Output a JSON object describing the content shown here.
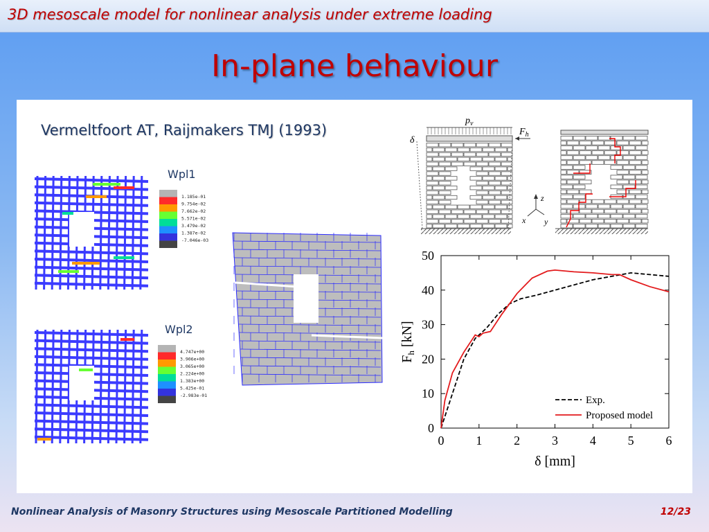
{
  "header": {
    "title": "3D mesoscale model for nonlinear analysis under extreme loading"
  },
  "slide": {
    "title": "In-plane behaviour",
    "reference": "Vermeltfoort AT, Raijmakers TMJ (1993)"
  },
  "contours": [
    {
      "label": "Wpl1",
      "legend": [
        "1.185e-01",
        "9.754e-02",
        "7.662e-02",
        "5.571e-02",
        "3.479e-02",
        "1.387e-02",
        "-7.046e-03"
      ]
    },
    {
      "label": "Wpl2",
      "legend": [
        "4.747e+00",
        "3.906e+00",
        "3.065e+00",
        "2.224e+00",
        "1.383e+00",
        "5.425e-01",
        "-2.983e-01"
      ]
    }
  ],
  "legend_colors": [
    "#b4b4b4",
    "#ff2a2a",
    "#ff9900",
    "#66ff33",
    "#00dd99",
    "#1e90ff",
    "#3333dd",
    "#444444"
  ],
  "schematic": {
    "load_p": "p",
    "load_p_sub": "v",
    "load_f": "F",
    "load_f_sub": "h",
    "delta": "δ",
    "axis_z": "z",
    "axis_x": "x",
    "axis_y": "y"
  },
  "chart_data": {
    "type": "line",
    "xlabel": "δ [mm]",
    "ylabel": "F",
    "ylabel_sub": "h",
    "ylabel_unit": " [kN]",
    "xlim": [
      0,
      6
    ],
    "ylim": [
      0,
      50
    ],
    "x_ticks": [
      0,
      1,
      2,
      3,
      4,
      5,
      6
    ],
    "y_ticks": [
      0,
      10,
      20,
      30,
      40,
      50
    ],
    "series": [
      {
        "name": "Exp.",
        "style": "dashed",
        "color": "#000000",
        "x": [
          0,
          0.3,
          0.6,
          0.9,
          1.2,
          1.5,
          1.8,
          2.1,
          2.5,
          3.0,
          3.5,
          4.0,
          4.5,
          5.0,
          5.5,
          6.0
        ],
        "y": [
          0,
          10,
          20,
          26,
          29,
          33,
          36,
          37.5,
          38.5,
          40,
          41.5,
          43,
          44,
          45,
          44.5,
          44
        ]
      },
      {
        "name": "Proposed model",
        "style": "solid",
        "color": "#e31a1c",
        "x": [
          0,
          0.1,
          0.3,
          0.6,
          0.9,
          1.0,
          1.1,
          1.3,
          1.6,
          2.0,
          2.4,
          2.8,
          3.0,
          3.5,
          4.0,
          4.5,
          4.7,
          5.0,
          5.5,
          6.0
        ],
        "y": [
          0,
          8,
          16,
          22,
          27,
          26.5,
          27.5,
          28,
          33,
          39,
          43.5,
          45.5,
          45.8,
          45.3,
          45,
          44.5,
          44.5,
          43,
          41,
          39.5
        ]
      }
    ]
  },
  "footer": {
    "text": "Nonlinear Analysis of Masonry Structures using Mesoscale Partitioned Modelling",
    "page": "12/23"
  }
}
